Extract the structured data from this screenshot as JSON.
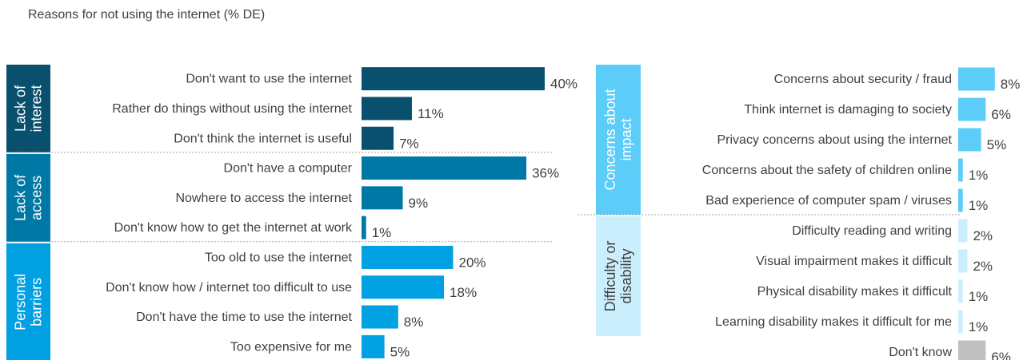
{
  "title": "Reasons for not using the internet (% DE)",
  "chart_data": [
    {
      "type": "bar",
      "orientation": "horizontal",
      "xlim": [
        0,
        40
      ],
      "groups": [
        {
          "name": "Lack of interest",
          "color": "#08506e",
          "text_color": "#ffffff",
          "categories": [
            "Don't want to use the internet",
            "Rather do things without using the internet",
            "Don't think the internet is useful"
          ],
          "values": [
            40,
            11,
            7
          ],
          "labels": [
            "40%",
            "11%",
            "7%"
          ]
        },
        {
          "name": "Lack of access",
          "color": "#0078a6",
          "text_color": "#ffffff",
          "categories": [
            "Don't have a computer",
            "Nowhere to access the internet",
            "Don't know how to get the internet at work"
          ],
          "values": [
            36,
            9,
            1
          ],
          "labels": [
            "36%",
            "9%",
            "1%"
          ]
        },
        {
          "name": "Personal barriers",
          "color": "#00a0e2",
          "text_color": "#ffffff",
          "categories": [
            "Too old to use the internet",
            "Don't know how / internet too difficult to use",
            "Don't have the time to use the internet",
            "Too expensive for me"
          ],
          "values": [
            20,
            18,
            8,
            5
          ],
          "labels": [
            "20%",
            "18%",
            "8%",
            "5%"
          ]
        }
      ]
    },
    {
      "type": "bar",
      "orientation": "horizontal",
      "xlim": [
        0,
        40
      ],
      "groups": [
        {
          "name": "Concerns about impact",
          "color": "#5bcdf8",
          "text_color": "#ffffff",
          "categories": [
            "Concerns about security / fraud",
            "Think internet is damaging to society",
            "Privacy concerns about using the internet",
            "Concerns about the safety of children online",
            "Bad experience of computer spam / viruses"
          ],
          "values": [
            8,
            6,
            5,
            1,
            1
          ],
          "labels": [
            "8%",
            "6%",
            "5%",
            "1%",
            "1%"
          ]
        },
        {
          "name": "Difficulty or disability",
          "color": "#cbeefd",
          "text_color": "#404040",
          "categories": [
            "Difficulty reading and writing",
            "Visual impairment makes it difficult",
            "Physical disability makes it difficult",
            "Learning disability makes it difficult for me"
          ],
          "values": [
            2,
            2,
            1,
            1
          ],
          "labels": [
            "2%",
            "2%",
            "1%",
            "1%"
          ]
        },
        {
          "name": "",
          "color": "#c0c0c0",
          "text_color": "#404040",
          "categories": [
            "Don't know"
          ],
          "values": [
            6
          ],
          "labels": [
            "6%"
          ]
        }
      ]
    }
  ]
}
